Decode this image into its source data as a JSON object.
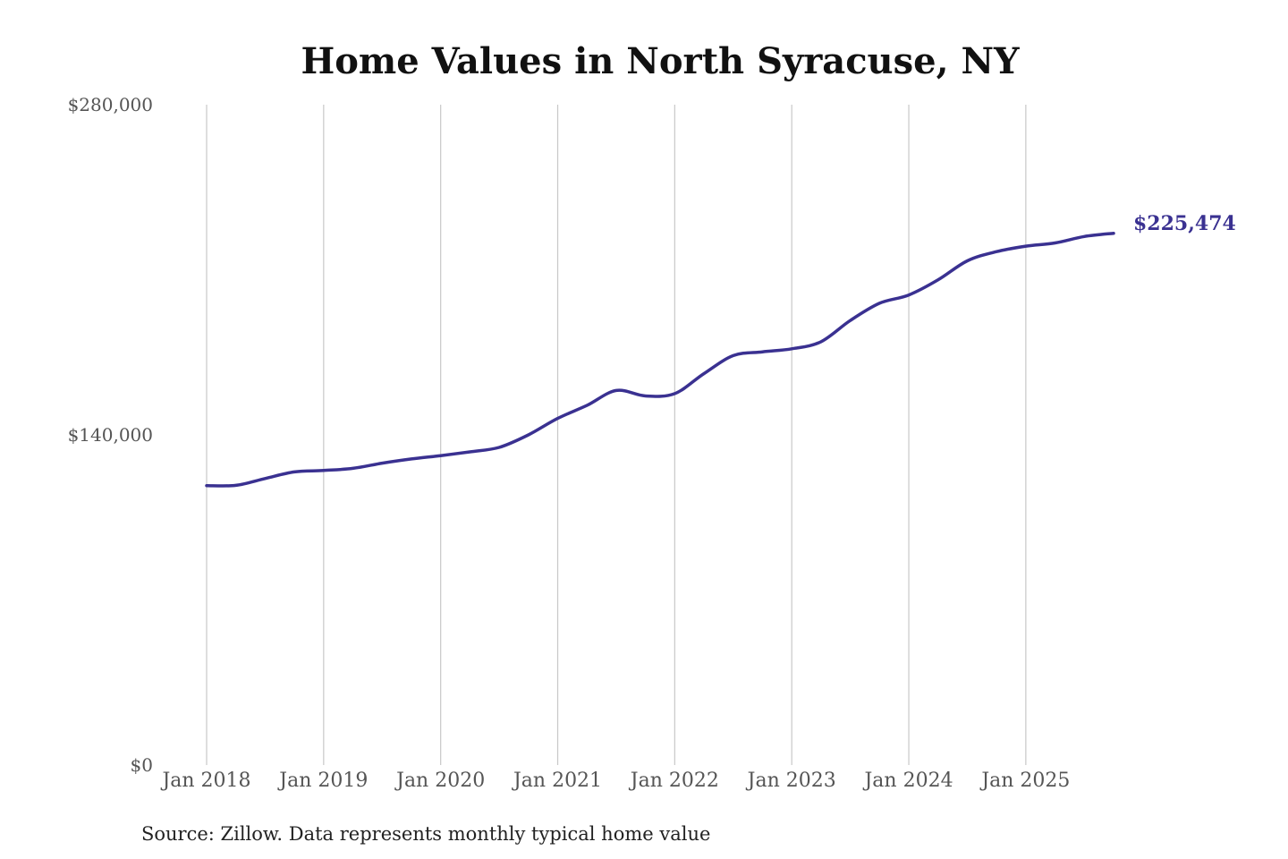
{
  "chart_data": {
    "type": "line",
    "title": "Home Values in North Syracuse, NY",
    "source": "Source: Zillow. Data represents monthly typical home value",
    "ylim": [
      0,
      280000
    ],
    "yticks": [
      {
        "value": 0,
        "label": "$0"
      },
      {
        "value": 140000,
        "label": "$140,000"
      },
      {
        "value": 280000,
        "label": "$280,000"
      }
    ],
    "xlim": [
      "2018-01",
      "2025-10"
    ],
    "xticks": [
      {
        "date": "2018-01",
        "label": "Jan 2018"
      },
      {
        "date": "2019-01",
        "label": "Jan 2019"
      },
      {
        "date": "2020-01",
        "label": "Jan 2020"
      },
      {
        "date": "2021-01",
        "label": "Jan 2021"
      },
      {
        "date": "2022-01",
        "label": "Jan 2022"
      },
      {
        "date": "2023-01",
        "label": "Jan 2023"
      },
      {
        "date": "2024-01",
        "label": "Jan 2024"
      },
      {
        "date": "2025-01",
        "label": "Jan 2025"
      }
    ],
    "grid": "vertical",
    "end_label": "$225,474",
    "line_color": "#3a3191",
    "series": [
      {
        "points": [
          {
            "date": "2018-01",
            "value": 118500
          },
          {
            "date": "2018-04",
            "value": 118600
          },
          {
            "date": "2018-07",
            "value": 121500
          },
          {
            "date": "2018-10",
            "value": 124300
          },
          {
            "date": "2019-01",
            "value": 124900
          },
          {
            "date": "2019-04",
            "value": 125800
          },
          {
            "date": "2019-07",
            "value": 128000
          },
          {
            "date": "2019-10",
            "value": 129800
          },
          {
            "date": "2020-01",
            "value": 131200
          },
          {
            "date": "2020-04",
            "value": 132800
          },
          {
            "date": "2020-07",
            "value": 134700
          },
          {
            "date": "2020-10",
            "value": 140000
          },
          {
            "date": "2021-01",
            "value": 147000
          },
          {
            "date": "2021-04",
            "value": 152500
          },
          {
            "date": "2021-07",
            "value": 158800
          },
          {
            "date": "2021-10",
            "value": 156500
          },
          {
            "date": "2022-01",
            "value": 157500
          },
          {
            "date": "2022-04",
            "value": 166000
          },
          {
            "date": "2022-07",
            "value": 173600
          },
          {
            "date": "2022-10",
            "value": 175200
          },
          {
            "date": "2023-01",
            "value": 176500
          },
          {
            "date": "2023-04",
            "value": 179500
          },
          {
            "date": "2023-07",
            "value": 188500
          },
          {
            "date": "2023-10",
            "value": 195800
          },
          {
            "date": "2024-01",
            "value": 199300
          },
          {
            "date": "2024-04",
            "value": 205700
          },
          {
            "date": "2024-07",
            "value": 213800
          },
          {
            "date": "2024-10",
            "value": 217700
          },
          {
            "date": "2025-01",
            "value": 220000
          },
          {
            "date": "2025-04",
            "value": 221400
          },
          {
            "date": "2025-07",
            "value": 224100
          },
          {
            "date": "2025-10",
            "value": 225474
          }
        ]
      }
    ]
  }
}
